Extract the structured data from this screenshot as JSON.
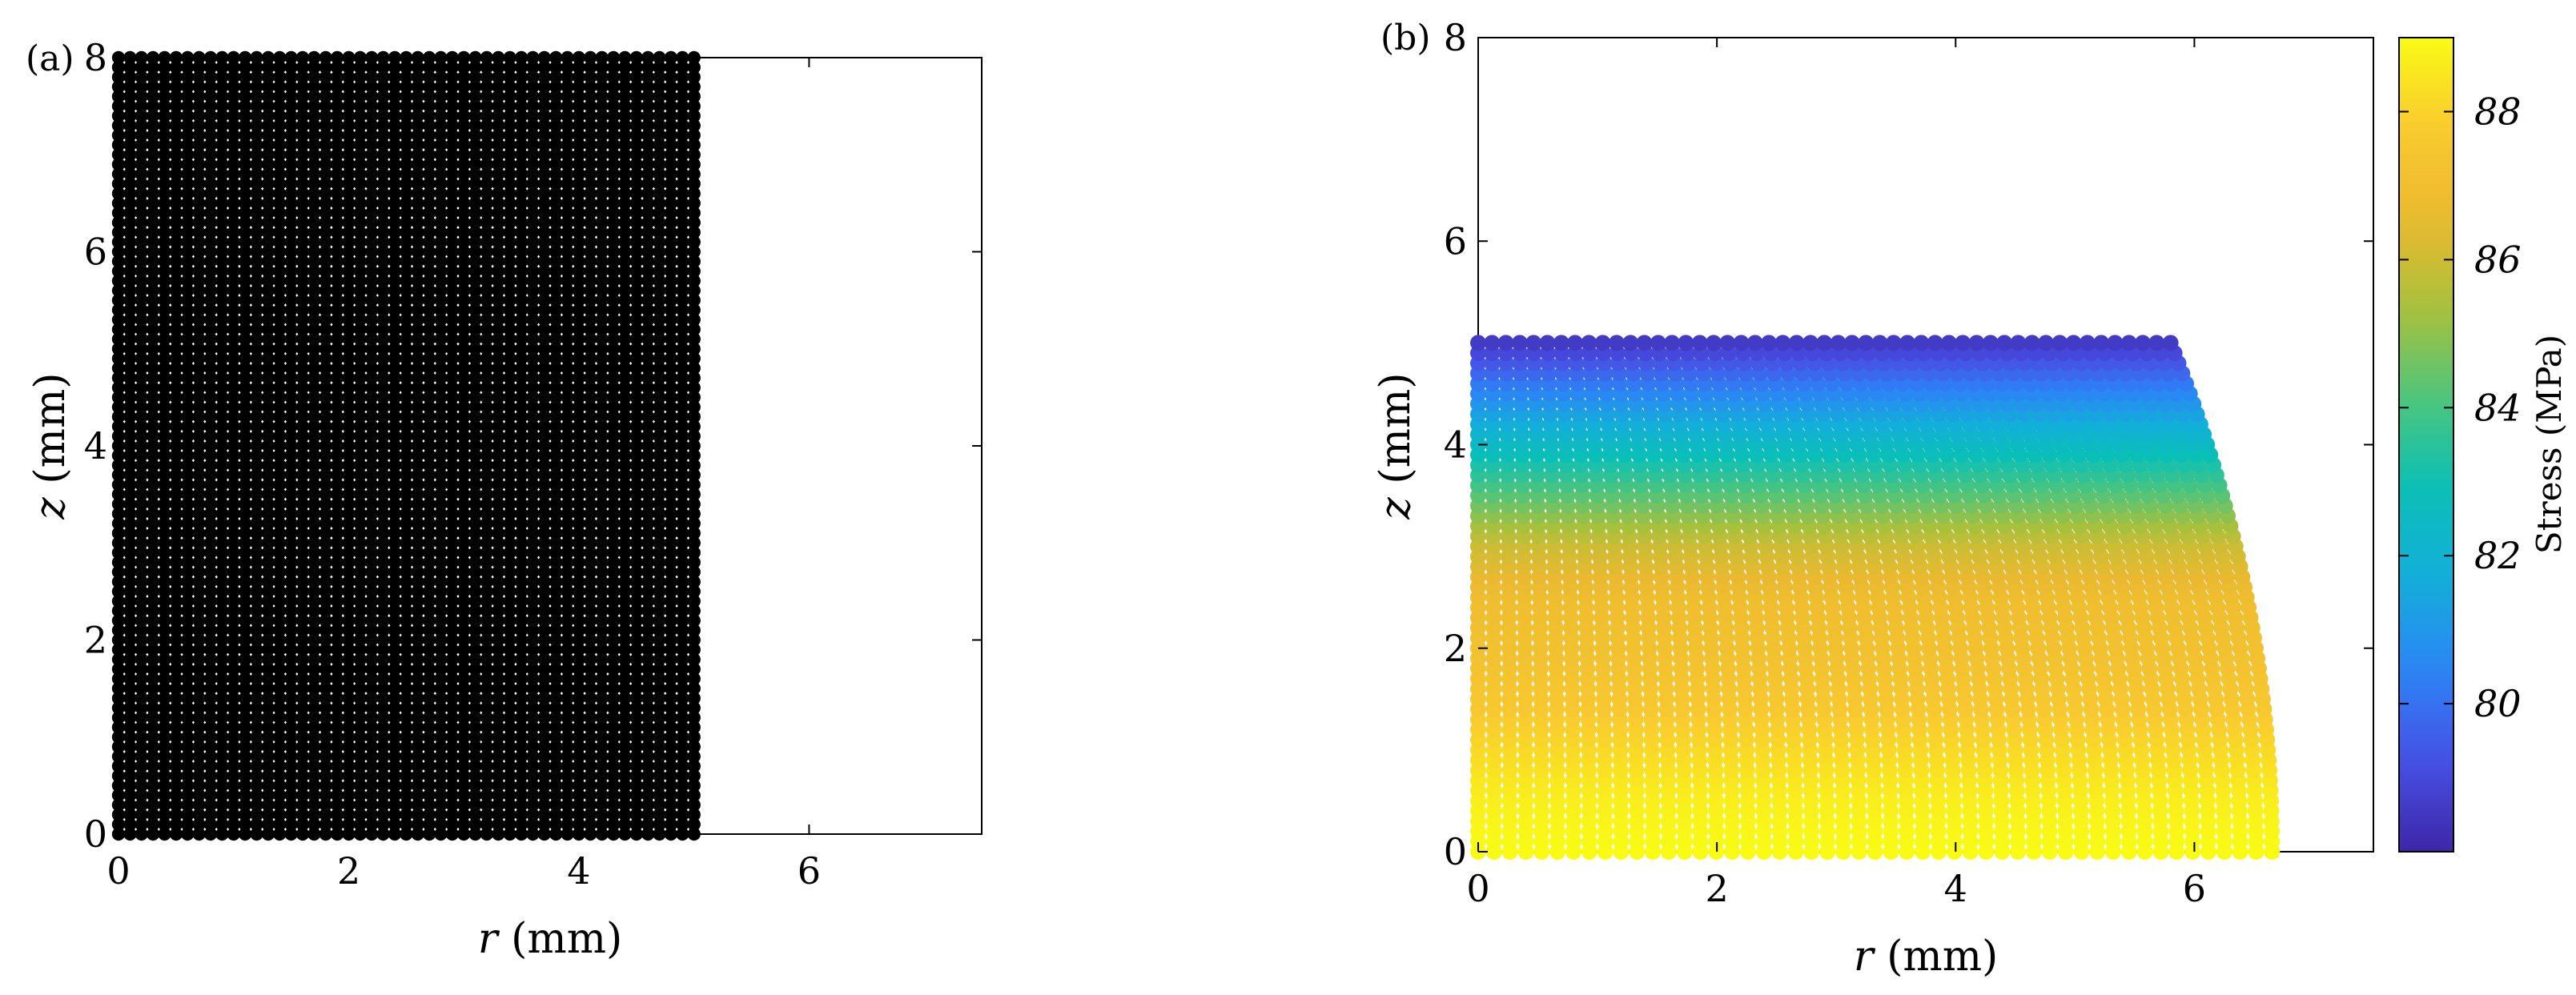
{
  "colors": {
    "markers_a": "#000000",
    "colormap": [
      "#3e26a8",
      "#4750e5",
      "#2c84f6",
      "#13aeda",
      "#0abfb7",
      "#4cc57d",
      "#a9c03b",
      "#ebb92f",
      "#f9c930",
      "#f9fb15"
    ]
  },
  "chart_data": [
    {
      "panel": "(a)",
      "type": "scatter",
      "title": "",
      "xlabel": {
        "var": "r",
        "unit": " (mm)"
      },
      "ylabel": {
        "var": "z",
        "unit": " (mm)"
      },
      "xlim": [
        0,
        7.5
      ],
      "ylim": [
        0,
        8
      ],
      "xticks": [
        "0",
        "2",
        "4",
        "6"
      ],
      "yticks": [
        "0",
        "2",
        "4",
        "6",
        "8"
      ],
      "grid": false,
      "marker_color": "#000000",
      "x": [
        0,
        5
      ],
      "y": [
        0,
        8
      ],
      "points_per_row": 51,
      "rows": 81,
      "description": "uniform rectangular particle grid, r from 0 to 5 mm, z from 0 to 8 mm"
    },
    {
      "panel": "(b)",
      "type": "scatter",
      "title": "",
      "xlabel": {
        "var": "r",
        "unit": " (mm)"
      },
      "ylabel": {
        "var": "z",
        "unit": " (mm)"
      },
      "xlim": [
        0,
        7.5
      ],
      "ylim": [
        0,
        8
      ],
      "xticks": [
        "0",
        "2",
        "4",
        "6"
      ],
      "yticks": [
        "0",
        "2",
        "4",
        "6",
        "8"
      ],
      "grid": false,
      "x": [
        0,
        6.65
      ],
      "y": [
        0,
        5
      ],
      "top_right_r": 5.8,
      "bottom_right_r": 6.65,
      "points_per_row": 51,
      "rows": 51,
      "colorbar": {
        "label": "Stress (MPa)",
        "range": [
          78,
          89
        ],
        "ticks": [
          "80",
          "82",
          "84",
          "86",
          "88"
        ],
        "position": "right"
      },
      "stress_profile": {
        "z": [
          0,
          0.5,
          1,
          1.5,
          2,
          2.5,
          3,
          3.5,
          4,
          4.5,
          5
        ],
        "stress": [
          89,
          88.7,
          88.2,
          87.6,
          87.2,
          86.9,
          86,
          84.3,
          82.5,
          80.6,
          78.6
        ]
      }
    }
  ]
}
